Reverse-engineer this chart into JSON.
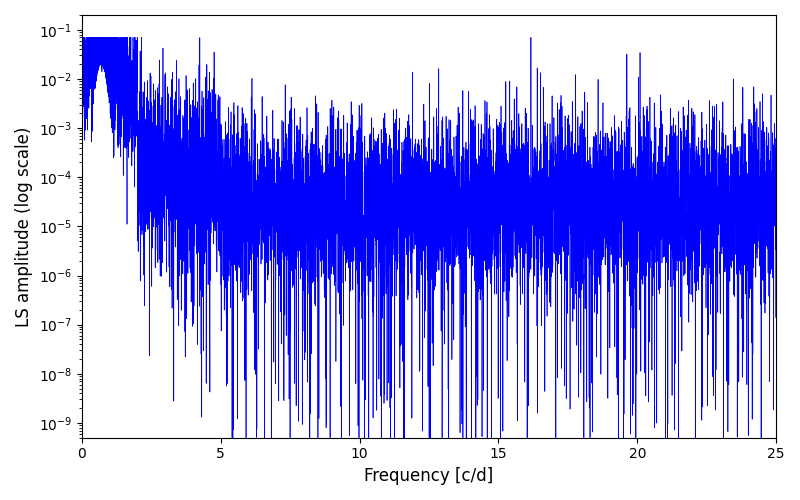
{
  "title": "",
  "xlabel": "Frequency [c/d]",
  "ylabel": "LS amplitude (log scale)",
  "xlim": [
    0,
    25
  ],
  "ylim": [
    5e-10,
    0.2
  ],
  "yscale": "log",
  "line_color": "#0000FF",
  "line_width": 0.5,
  "figsize": [
    8.0,
    5.0
  ],
  "dpi": 100,
  "freq_max": 25.0,
  "n_points": 8000,
  "seed": 12345,
  "peak_freq": 0.7,
  "peak_amplitude": 0.04,
  "background_color": "#ffffff"
}
